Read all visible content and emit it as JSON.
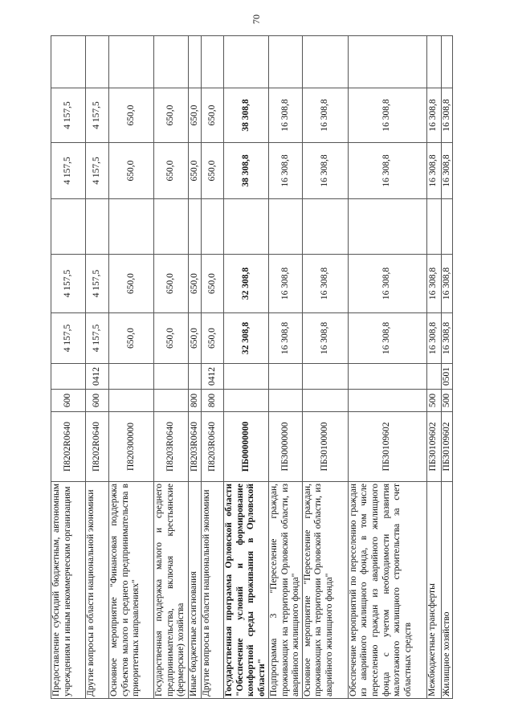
{
  "page_number": "70",
  "rows": [
    {
      "name": "Предоставление субсидий бюджетным, автономным учреждениям и иным некоммерческим организациям",
      "code": "П8202R0640",
      "vr": "600",
      "pr": "",
      "v1": "4 157,5",
      "v2": "4 157,5",
      "v3": "",
      "v4": "4 157,5",
      "v5": "4 157,5",
      "v6": ""
    },
    {
      "name": "Другие вопросы в области национальной экономики",
      "code": "П8202R0640",
      "vr": "600",
      "pr": "0412",
      "v1": "4 157,5",
      "v2": "4 157,5",
      "v3": "",
      "v4": "4 157,5",
      "v5": "4 157,5",
      "v6": ""
    },
    {
      "name": "Основное мероприятие \"Финансовая поддержка субъектов малого и среднего предпринимательства в приоритетных направлениях\"",
      "code": "П820300000",
      "vr": "",
      "pr": "",
      "v1": "650,0",
      "v2": "650,0",
      "v3": "",
      "v4": "650,0",
      "v5": "650,0",
      "v6": ""
    },
    {
      "name": "Государственная поддержка малого и среднего предпринимательства, включая крестьянские (фермерские) хозяйства",
      "code": "П8203R0640",
      "vr": "",
      "pr": "",
      "v1": "650,0",
      "v2": "650,0",
      "v3": "",
      "v4": "650,0",
      "v5": "650,0",
      "v6": ""
    },
    {
      "name": "Иные бюджетные ассигнования",
      "code": "П8203R0640",
      "vr": "800",
      "pr": "",
      "v1": "650,0",
      "v2": "650,0",
      "v3": "",
      "v4": "650,0",
      "v5": "650,0",
      "v6": ""
    },
    {
      "name": "Другие вопросы в области национальной экономики",
      "code": "П8203R0640",
      "vr": "800",
      "pr": "0412",
      "v1": "650,0",
      "v2": "650,0",
      "v3": "",
      "v4": "650,0",
      "v5": "650,0",
      "v6": ""
    },
    {
      "name": "Государственная программа Орловской области \"Обеспечение условий и формирование комфортной среды проживания в Орловской области\"",
      "code": "ПБ00000000",
      "vr": "",
      "pr": "",
      "v1": "32 308,8",
      "v2": "32 308,8",
      "v3": "",
      "v4": "38 308,8",
      "v5": "38 308,8",
      "v6": ""
    },
    {
      "name": "Подпрограмма 3 \"Переселение граждан, проживающих на территории Орловской области, из аварийного жилищного фонда\"",
      "code": "ПБ30000000",
      "vr": "",
      "pr": "",
      "v1": "16 308,8",
      "v2": "16 308,8",
      "v3": "",
      "v4": "16 308,8",
      "v5": "16 308,8",
      "v6": ""
    },
    {
      "name": "Основное мероприятие \"Переселение граждан, проживающих на территории Орловской области, из аварийного жилищного фонда\"",
      "code": "ПБ30100000",
      "vr": "",
      "pr": "",
      "v1": "16 308,8",
      "v2": "16 308,8",
      "v3": "",
      "v4": "16 308,8",
      "v5": "16 308,8",
      "v6": ""
    },
    {
      "name": "Обеспечение мероприятий по переселению граждан из аварийного жилищного фонда, в том числе переселению граждан из аварийного жилищного фонда с учетом необходимости развития малоэтажного жилищного строительства за счет областных средств",
      "code": "ПБ30109602",
      "vr": "",
      "pr": "",
      "v1": "16 308,8",
      "v2": "16 308,8",
      "v3": "",
      "v4": "16 308,8",
      "v5": "16 308,8",
      "v6": ""
    },
    {
      "name": "Межбюджетные трансферты",
      "code": "ПБ30109602",
      "vr": "500",
      "pr": "",
      "v1": "16 308,8",
      "v2": "16 308,8",
      "v3": "",
      "v4": "16 308,8",
      "v5": "16 308,8",
      "v6": ""
    },
    {
      "name": "Жилищное хозяйство",
      "code": "ПБ30109602",
      "vr": "500",
      "pr": "0501",
      "v1": "16 308,8",
      "v2": "16 308,8",
      "v3": "",
      "v4": "16 308,8",
      "v5": "16 308,8",
      "v6": ""
    }
  ]
}
